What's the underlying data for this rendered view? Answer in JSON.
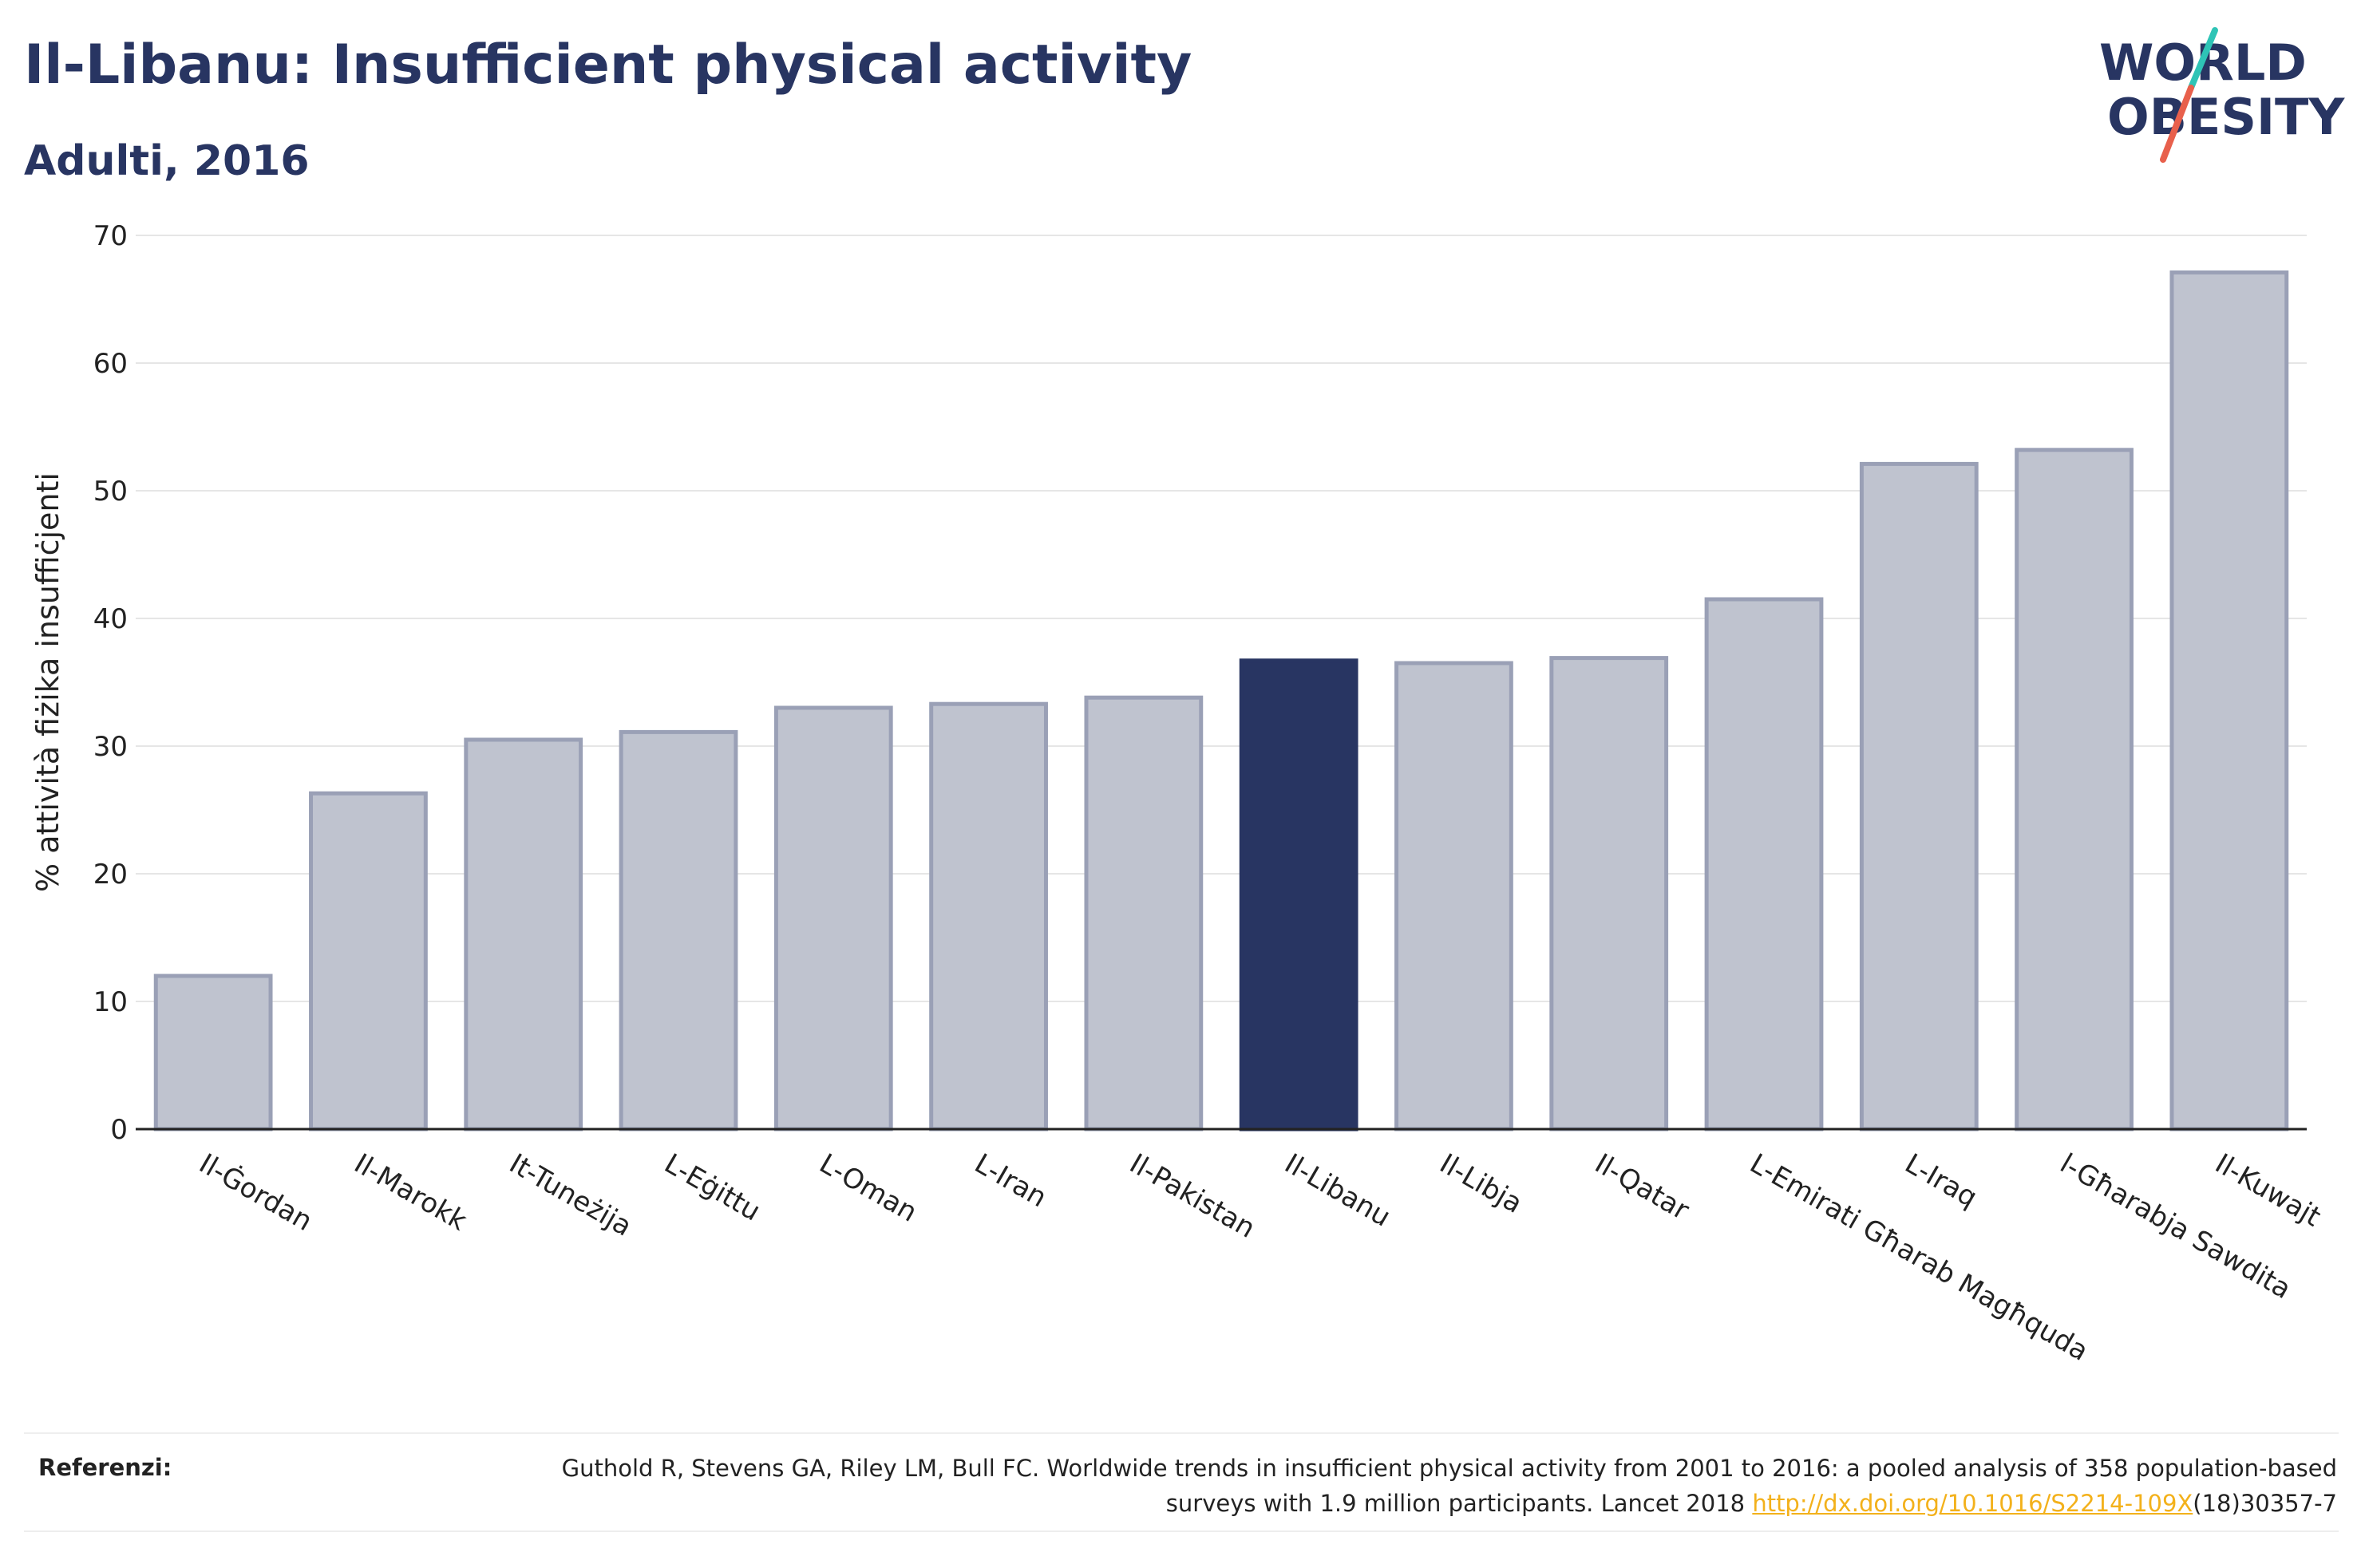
{
  "header": {
    "title": "Il-Libanu: Insufficient physical activity",
    "subtitle": "Adulti, 2016"
  },
  "logo": {
    "line1": "WORLD",
    "line2": "OBESITY",
    "accent_colors": [
      "#2ec4b6",
      "#e8604c"
    ]
  },
  "chart_data": {
    "type": "bar",
    "title": "Il-Libanu: Insufficient physical activity",
    "subtitle": "Adulti, 2016",
    "xlabel": "",
    "ylabel": "% attività fiżika insuffiċjenti",
    "ylim": [
      0,
      70
    ],
    "yticks": [
      0,
      10,
      20,
      30,
      40,
      50,
      60,
      70
    ],
    "grid": true,
    "categories": [
      "Il-Ġordan",
      "Il-Marokk",
      "It-Tuneżija",
      "L-Eġittu",
      "L-Oman",
      "L-Iran",
      "Il-Pakistan",
      "Il-Libanu",
      "Il-Libja",
      "Il-Qatar",
      "L-Emirati Għarab Magħquda",
      "L-Iraq",
      "l-Għarabja Sawdita",
      "Il-Kuwajt"
    ],
    "values": [
      12.0,
      26.3,
      30.5,
      31.1,
      33.0,
      33.3,
      33.8,
      36.7,
      36.5,
      36.9,
      41.5,
      52.1,
      53.2,
      67.1
    ],
    "highlight_index": 7,
    "colors": {
      "bar": "#bfc3cf",
      "bar_border": "#9aa0b6",
      "highlight": "#283562",
      "axis": "#222222",
      "grid": "#e6e6e6"
    }
  },
  "footer": {
    "label": "Referenzi:",
    "text_before": "Guthold R, Stevens GA, Riley LM, Bull FC. Worldwide trends in insufficient physical activity from 2001 to 2016: a pooled analysis of 358 population-based surveys with 1.9 million participants. Lancet 2018 ",
    "link": "http://dx.doi.org/10.1016/S2214-109X",
    "text_after": "(18)30357-7"
  }
}
